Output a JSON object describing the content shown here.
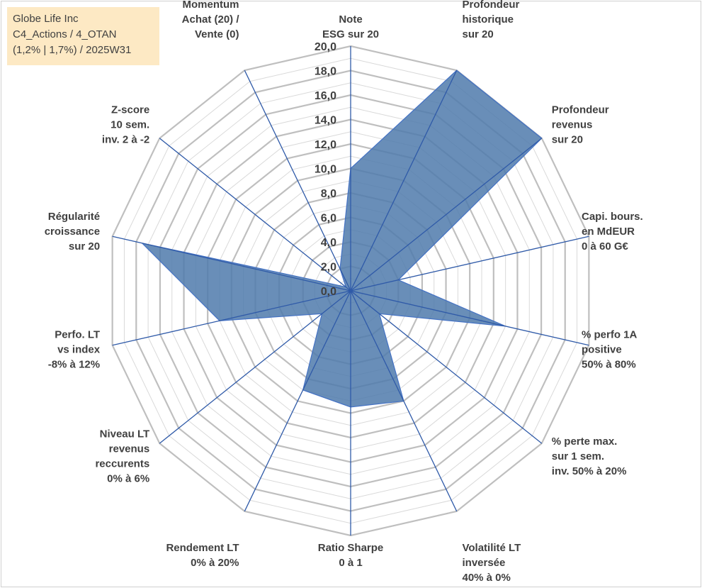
{
  "info": {
    "company": "Globe Life Inc",
    "category": "C4_Actions / 4_OTAN",
    "detail": "(1,2% | 1,7%) / 2025W31"
  },
  "chart_data": {
    "type": "radar",
    "rmin": 0,
    "rmax": 20,
    "tick_step": 2,
    "ticks": [
      "0,0",
      "2,0",
      "4,0",
      "6,0",
      "8,0",
      "10,0",
      "12,0",
      "14,0",
      "16,0",
      "18,0",
      "20,0"
    ],
    "axes": [
      {
        "lines": [
          "Note",
          "ESG sur 20"
        ],
        "value": 10.0
      },
      {
        "lines": [
          "Profondeur",
          "historique",
          "sur 20"
        ],
        "value": 20.0
      },
      {
        "lines": [
          "Profondeur",
          "revenus",
          "sur 20"
        ],
        "value": 20.0
      },
      {
        "lines": [
          "Capi. bours.",
          "en MdEUR",
          "0 à 60 G€"
        ],
        "value": 4.0
      },
      {
        "lines": [
          "% perfo 1A",
          "positive",
          "50% à 80%"
        ],
        "value": 13.0
      },
      {
        "lines": [
          "% perte max.",
          "sur 1 sem.",
          "inv. 50% à 20%"
        ],
        "value": 3.0
      },
      {
        "lines": [
          "Volatilité LT",
          "inversée",
          "40% à 0%"
        ],
        "value": 10.0
      },
      {
        "lines": [
          "Ratio Sharpe",
          "0 à 1"
        ],
        "value": 9.5
      },
      {
        "lines": [
          "Rendement LT",
          "0% à 20%"
        ],
        "value": 9.0
      },
      {
        "lines": [
          "Niveau LT",
          "revenus",
          "reccurents",
          "0% à 6%"
        ],
        "value": 3.0
      },
      {
        "lines": [
          "Perfo. LT",
          "vs index",
          "-8% à 12%"
        ],
        "value": 11.0
      },
      {
        "lines": [
          "Régularité",
          "croissance",
          "sur 20"
        ],
        "value": 17.5
      },
      {
        "lines": [
          "Z-score",
          "10 sem.",
          "inv. 2 à -2"
        ],
        "value": 0.5
      },
      {
        "lines": [
          "Momentum",
          "Achat (20) /",
          "Vente (0)"
        ],
        "value": 2.0
      }
    ],
    "colors": {
      "fill": "#4f7aab",
      "stroke": "#4472c4",
      "spoke": "#2f5aa8",
      "grid_major": "#bfbfbf",
      "grid_minor": "#d9d9d9"
    }
  }
}
